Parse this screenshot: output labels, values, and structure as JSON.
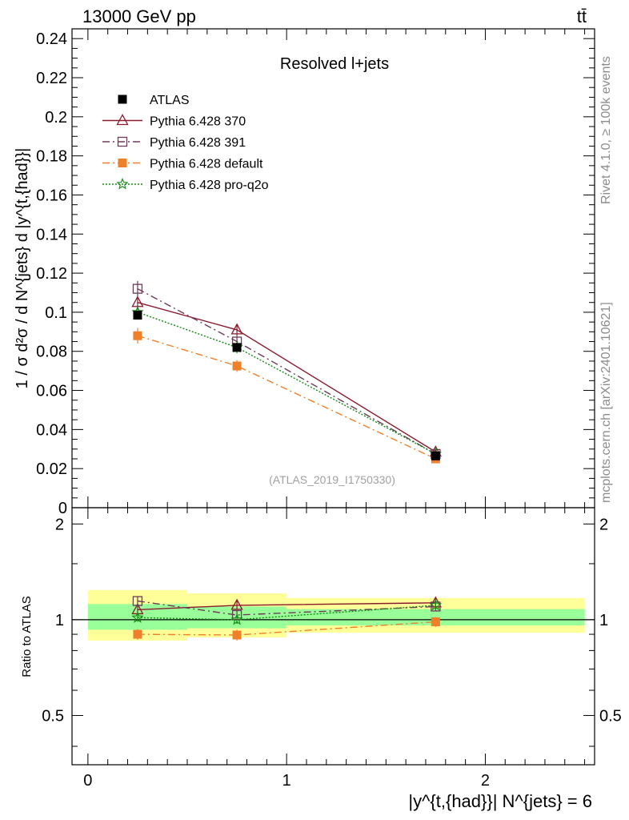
{
  "header": {
    "energy_label": "13000 GeV pp",
    "process_label": "tt̄"
  },
  "side": {
    "rivet_label": "Rivet 4.1.0, ≥ 100k events",
    "mcplots_label": "mcplots.cern.ch [arXiv:2401.10621]"
  },
  "chart_data": [
    {
      "type": "line",
      "panel": "main",
      "title": "Resolved l+jets",
      "analysis_tag": "(ATLAS_2019_I1750330)",
      "ylabel": "1 / σ d²σ / d N^{jets} d |y^{t,{had}}|",
      "xlabel": "|y^{t,{had}}| N^{jets} = 6",
      "xlim": [
        -0.08,
        2.55
      ],
      "ylim": [
        0,
        0.245
      ],
      "yticks": [
        0,
        0.02,
        0.04,
        0.06,
        0.08,
        0.1,
        0.12,
        0.14,
        0.16,
        0.18,
        0.2,
        0.22,
        0.24
      ],
      "ytick_labels": [
        "0",
        "0.02",
        "0.04",
        "0.06",
        "0.08",
        "0.1",
        "0.12",
        "0.14",
        "0.16",
        "0.18",
        "0.2",
        "0.22",
        "0.24"
      ],
      "x": [
        0.25,
        0.75,
        1.75
      ],
      "series": [
        {
          "name": "ATLAS",
          "color": "#000000",
          "marker": "filled-square",
          "dash": "",
          "values": [
            0.0985,
            0.082,
            0.0265
          ],
          "errors": [
            0.002,
            0.0015,
            0.001
          ]
        },
        {
          "name": "Pythia 6.428 370",
          "color": "#8b1a2e",
          "marker": "open-triangle",
          "dash": "",
          "values": [
            0.105,
            0.091,
            0.0285
          ],
          "errors": [
            0.003,
            0.003,
            0.001
          ]
        },
        {
          "name": "Pythia 6.428 391",
          "color": "#6e3a5a",
          "marker": "open-square",
          "dash": "9,4,2,4",
          "values": [
            0.112,
            0.085,
            0.0275
          ],
          "errors": [
            0.004,
            0.003,
            0.001
          ]
        },
        {
          "name": "Pythia 6.428 default",
          "color": "#f07f2a",
          "marker": "filled-square",
          "dash": "9,4,2,4",
          "values": [
            0.088,
            0.0725,
            0.025
          ],
          "errors": [
            0.004,
            0.003,
            0.001
          ]
        },
        {
          "name": "Pythia 6.428 pro-q2o",
          "color": "#138a13",
          "marker": "star",
          "dash": "2,2",
          "values": [
            0.1,
            0.082,
            0.0275
          ],
          "errors": [
            0.003,
            0.003,
            0.001
          ]
        }
      ]
    },
    {
      "type": "line",
      "panel": "ratio",
      "ylabel": "Ratio to ATLAS",
      "xlim": [
        -0.08,
        2.55
      ],
      "ylim": [
        0.35,
        2.25
      ],
      "yticks": [
        0.5,
        1,
        2
      ],
      "ytick_labels": [
        "0.5",
        "1",
        "2"
      ],
      "xticks": [
        0,
        1,
        2
      ],
      "xtick_labels": [
        "0",
        "1",
        "2"
      ],
      "bands": [
        {
          "x0": 0.0,
          "x1": 0.5,
          "inner": [
            0.93,
            1.12
          ],
          "outer": [
            0.86,
            1.24
          ]
        },
        {
          "x0": 0.5,
          "x1": 1.0,
          "inner": [
            0.94,
            1.1
          ],
          "outer": [
            0.88,
            1.21
          ]
        },
        {
          "x0": 1.0,
          "x1": 2.5,
          "inner": [
            0.96,
            1.08
          ],
          "outer": [
            0.91,
            1.17
          ]
        }
      ],
      "series": [
        {
          "name": "Pythia 6.428 370",
          "values": [
            1.075,
            1.11,
            1.13
          ],
          "errors": [
            0.035,
            0.035,
            0.035
          ]
        },
        {
          "name": "Pythia 6.428 391",
          "values": [
            1.145,
            1.035,
            1.1
          ],
          "errors": [
            0.04,
            0.035,
            0.035
          ]
        },
        {
          "name": "Pythia 6.428 default",
          "values": [
            0.9,
            0.895,
            0.985
          ],
          "errors": [
            0.035,
            0.035,
            0.035
          ]
        },
        {
          "name": "Pythia 6.428 pro-q2o",
          "values": [
            1.015,
            1.0,
            1.11
          ],
          "errors": [
            0.03,
            0.03,
            0.035
          ]
        }
      ]
    }
  ]
}
